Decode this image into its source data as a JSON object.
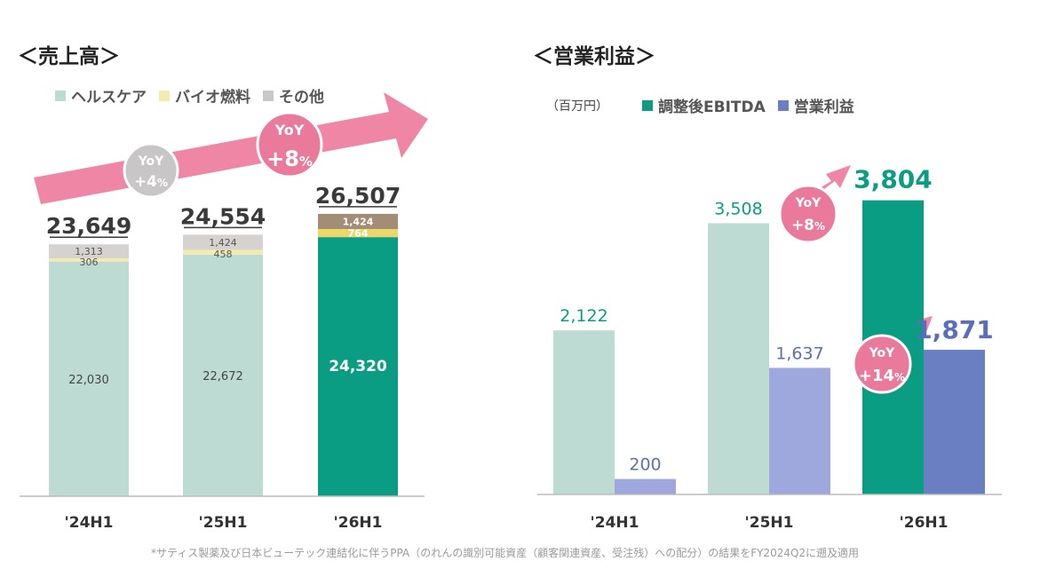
{
  "left_title": "＜売上高＞",
  "right_title": "＜営業利益＞",
  "left_legend": [
    {
      "label": "ヘルスケア",
      "color": "#bddad3"
    },
    {
      "label": "バイオ燃料",
      "color": "#f4ebb0"
    },
    {
      "label": "その他",
      "color": "#c8c8c8"
    }
  ],
  "right_unit": "（百万円）",
  "right_legend": [
    {
      "label": "調整後EBITDA",
      "color": "#0b9d84"
    },
    {
      "label": "営業利益",
      "color": "#6a7fc1"
    }
  ],
  "footnote": "*サティス製薬及び日本ビューテック連結化に伴うPPA（のれんの識別可能資産（顧客関連資産、受注残）への配分）の結果をFY2024Q2に遡及適用",
  "yoy_badges": {
    "sales_25": {
      "line1": "YoY",
      "line2": "+4",
      "suffix": "%"
    },
    "sales_26": {
      "line1": "YoY",
      "line2": "+8",
      "suffix": "%"
    },
    "ebitda_26": {
      "line1": "YoY",
      "line2": "+8",
      "suffix": "%"
    },
    "op_26": {
      "line1": "YoY",
      "line2": "+14",
      "suffix": "%"
    }
  },
  "chart_data": [
    {
      "type": "bar",
      "stacked": true,
      "title": "＜売上高＞",
      "categories": [
        "'24H1",
        "'25H1",
        "'26H1"
      ],
      "series": [
        {
          "name": "ヘルスケア",
          "values": [
            22030,
            22672,
            24320
          ],
          "labels": [
            "22,030",
            "22,672",
            "24,320"
          ]
        },
        {
          "name": "バイオ燃料",
          "values": [
            306,
            458,
            764
          ],
          "labels": [
            "306",
            "458",
            "764"
          ]
        },
        {
          "name": "その他",
          "values": [
            1313,
            1424,
            1424
          ],
          "labels": [
            "1,313",
            "1,424",
            "1,424"
          ]
        }
      ],
      "totals": [
        "23,649",
        "24,554",
        "26,507"
      ],
      "colors": {
        "healthcare": [
          "#bddad3",
          "#bddad3",
          "#0b9d84"
        ],
        "biofuel": [
          "#f4ebb0",
          "#f4ebb0",
          "#ebd76a"
        ],
        "other": [
          "#d6d2cf",
          "#d6d2cf",
          "#a38d76"
        ]
      },
      "legend": "top-left",
      "grid": false
    },
    {
      "type": "bar",
      "title": "＜営業利益＞",
      "categories": [
        "'24H1",
        "'25H1",
        "'26H1"
      ],
      "unit": "（百万円）",
      "series": [
        {
          "name": "調整後EBITDA",
          "values": [
            2122,
            3508,
            3804
          ],
          "labels": [
            "2,122",
            "3,508",
            "3,804"
          ],
          "colors": [
            "#bddad3",
            "#bddad3",
            "#0b9d84"
          ]
        },
        {
          "name": "営業利益",
          "values": [
            200,
            1637,
            1871
          ],
          "labels": [
            "200",
            "1,637",
            "1,871"
          ],
          "colors": [
            "#9ea8dc",
            "#9ea8dc",
            "#6a7fc1"
          ]
        }
      ],
      "legend": "top",
      "grid": false
    }
  ]
}
